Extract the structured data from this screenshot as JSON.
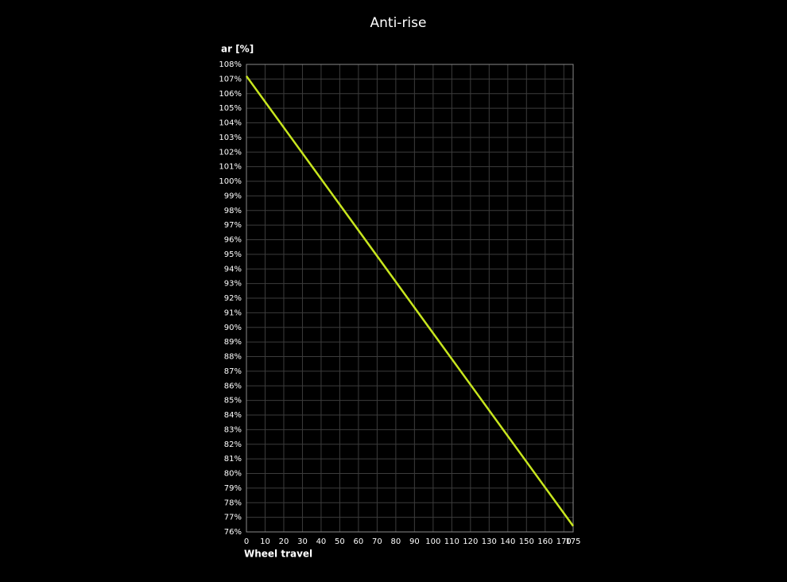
{
  "chart_data": {
    "type": "line",
    "title": "Anti-rise",
    "ylabel": "ar [%]",
    "xlabel": "Wheel travel",
    "x": [
      0,
      25,
      50,
      75,
      100,
      125,
      150,
      175
    ],
    "series": [
      {
        "name": "ar",
        "color": "#c8e61e",
        "values": [
          107.2,
          102.8,
          98.4,
          94.0,
          89.6,
          85.2,
          80.8,
          76.4
        ]
      }
    ],
    "xlim": [
      0,
      175
    ],
    "xticks": [
      0,
      10,
      20,
      30,
      40,
      50,
      60,
      70,
      80,
      90,
      100,
      110,
      120,
      130,
      140,
      150,
      160,
      170,
      175
    ],
    "ylim": [
      76,
      108
    ],
    "yticks": [
      {
        "value": 76,
        "label": "76%"
      },
      {
        "value": 77,
        "label": "77%"
      },
      {
        "value": 78,
        "label": "78%"
      },
      {
        "value": 79,
        "label": "79%"
      },
      {
        "value": 80,
        "label": "80%"
      },
      {
        "value": 81,
        "label": "81%"
      },
      {
        "value": 82,
        "label": "82%"
      },
      {
        "value": 83,
        "label": "83%"
      },
      {
        "value": 84,
        "label": "84%"
      },
      {
        "value": 85,
        "label": "85%"
      },
      {
        "value": 86,
        "label": "86%"
      },
      {
        "value": 87,
        "label": "87%"
      },
      {
        "value": 88,
        "label": "88%"
      },
      {
        "value": 89,
        "label": "89%"
      },
      {
        "value": 90,
        "label": "90%"
      },
      {
        "value": 91,
        "label": "91%"
      },
      {
        "value": 92,
        "label": "92%"
      },
      {
        "value": 93,
        "label": "93%"
      },
      {
        "value": 94,
        "label": "94%"
      },
      {
        "value": 95,
        "label": "95%"
      },
      {
        "value": 96,
        "label": "96%"
      },
      {
        "value": 97,
        "label": "97%"
      },
      {
        "value": 98,
        "label": "98%"
      },
      {
        "value": 99,
        "label": "99%"
      },
      {
        "value": 100,
        "label": "100%"
      },
      {
        "value": 101,
        "label": "101%"
      },
      {
        "value": 102,
        "label": "102%"
      },
      {
        "value": 103,
        "label": "103%"
      },
      {
        "value": 104,
        "label": "104%"
      },
      {
        "value": 105,
        "label": "105%"
      },
      {
        "value": 106,
        "label": "106%"
      },
      {
        "value": 107,
        "label": "107%"
      },
      {
        "value": 108,
        "label": "108%"
      }
    ],
    "grid": true
  }
}
